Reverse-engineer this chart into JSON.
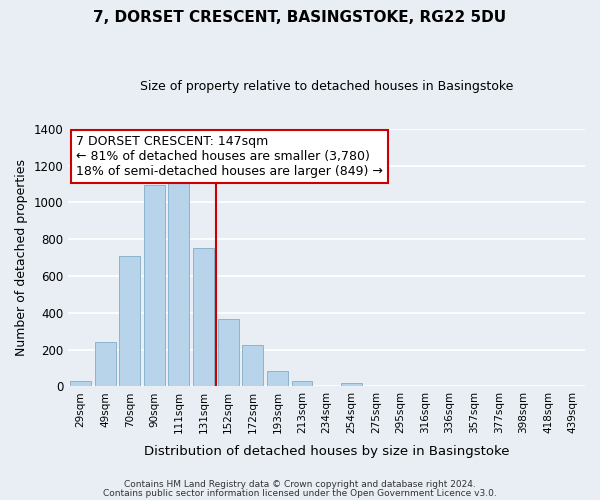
{
  "title": "7, DORSET CRESCENT, BASINGSTOKE, RG22 5DU",
  "subtitle": "Size of property relative to detached houses in Basingstoke",
  "xlabel": "Distribution of detached houses by size in Basingstoke",
  "ylabel": "Number of detached properties",
  "footer_line1": "Contains HM Land Registry data © Crown copyright and database right 2024.",
  "footer_line2": "Contains public sector information licensed under the Open Government Licence v3.0.",
  "bar_labels": [
    "29sqm",
    "49sqm",
    "70sqm",
    "90sqm",
    "111sqm",
    "131sqm",
    "152sqm",
    "172sqm",
    "193sqm",
    "213sqm",
    "234sqm",
    "254sqm",
    "275sqm",
    "295sqm",
    "316sqm",
    "336sqm",
    "357sqm",
    "377sqm",
    "398sqm",
    "418sqm",
    "439sqm"
  ],
  "bar_values": [
    30,
    240,
    710,
    1095,
    1105,
    750,
    365,
    225,
    85,
    30,
    0,
    20,
    0,
    0,
    0,
    0,
    0,
    0,
    0,
    0,
    0
  ],
  "bar_color": "#b8d4ea",
  "bar_edge_color": "#8ab4d0",
  "vline_x": 5.5,
  "vline_color": "#cc0000",
  "annotation_title": "7 DORSET CRESCENT: 147sqm",
  "annotation_line1": "← 81% of detached houses are smaller (3,780)",
  "annotation_line2": "18% of semi-detached houses are larger (849) →",
  "annotation_box_facecolor": "#ffffff",
  "annotation_box_edgecolor": "#cc0000",
  "ylim": [
    0,
    1400
  ],
  "yticks": [
    0,
    200,
    400,
    600,
    800,
    1000,
    1200,
    1400
  ],
  "plot_bg_color": "#e8eef4",
  "fig_bg_color": "#e8eef4",
  "grid_color": "#ffffff",
  "title_fontsize": 11,
  "subtitle_fontsize": 9
}
